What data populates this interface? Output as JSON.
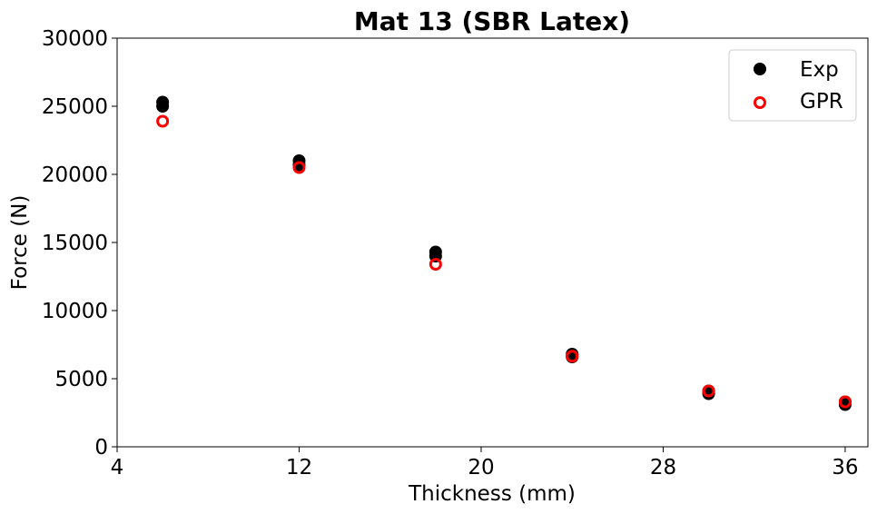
{
  "chart_data": {
    "type": "scatter",
    "title": "Mat 13 (SBR Latex)",
    "xlabel": "Thickness (mm)",
    "ylabel": "Force (N)",
    "xlim": [
      4,
      37
    ],
    "ylim": [
      0,
      30000
    ],
    "xticks": [
      4,
      12,
      20,
      28,
      36
    ],
    "yticks": [
      0,
      5000,
      10000,
      15000,
      20000,
      25000,
      30000
    ],
    "grid": false,
    "legend_position": "top-right",
    "series": [
      {
        "name": "Exp",
        "marker": "filled-circle",
        "color": "#000000",
        "x": [
          6,
          6,
          12,
          12,
          18,
          18,
          24,
          24,
          30,
          30,
          36,
          36
        ],
        "y": [
          25300,
          25000,
          21000,
          20700,
          14300,
          14000,
          6800,
          6600,
          4100,
          3900,
          3300,
          3100
        ]
      },
      {
        "name": "GPR",
        "marker": "hollow-circle",
        "color": "#ff0000",
        "x": [
          6,
          12,
          18,
          24,
          30,
          36
        ],
        "y": [
          23900,
          20500,
          13400,
          6650,
          4100,
          3300
        ]
      }
    ]
  }
}
